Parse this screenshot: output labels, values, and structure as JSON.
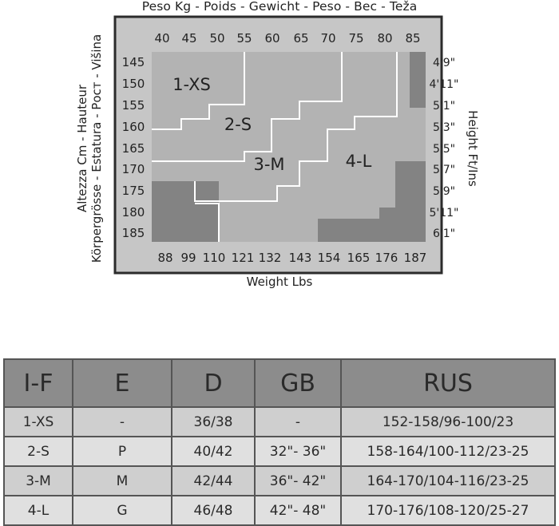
{
  "chart_data": {
    "type": "table",
    "title": "Peso Kg - Poids - Gewicht - Peso - Bec - Teža",
    "xlabel": "Weight Lbs",
    "ylabel_left": [
      "Altezza Cm - Hauteur",
      "Körpergrösse - Estatura - Рост - Višina"
    ],
    "ylabel_right": "Height Ft/Ins",
    "kg_ticks": [
      "40",
      "45",
      "50",
      "55",
      "60",
      "65",
      "70",
      "75",
      "80",
      "85"
    ],
    "lbs_ticks": [
      "88",
      "99",
      "110",
      "121",
      "132",
      "143",
      "154",
      "165",
      "176",
      "187"
    ],
    "cm_ticks": [
      "145",
      "150",
      "155",
      "160",
      "165",
      "170",
      "175",
      "180",
      "185"
    ],
    "ftin_ticks": [
      "4'9\"",
      "4'11\"",
      "5'1\"",
      "5'3\"",
      "5'5\"",
      "5'7\"",
      "5'9\"",
      "5'11\"",
      "6'1\""
    ],
    "zones": [
      {
        "label": "1-XS"
      },
      {
        "label": "2-S"
      },
      {
        "label": "3-M"
      },
      {
        "label": "4-L"
      }
    ],
    "colors": {
      "frame_bg": "#c6c6c6",
      "plot_bg": "#b3b3b3",
      "out_of_range": "#838383",
      "boundary": "#ffffff",
      "border": "#2b2b2b"
    }
  },
  "size_table": {
    "headers": [
      "I-F",
      "E",
      "D",
      "GB",
      "RUS"
    ],
    "rows": [
      [
        "1-XS",
        "-",
        "36/38",
        "-",
        "152-158/96-100/23"
      ],
      [
        "2-S",
        "P",
        "40/42",
        "32\"- 36\"",
        "158-164/100-112/23-25"
      ],
      [
        "3-M",
        "M",
        "42/44",
        "36\"- 42\"",
        "164-170/104-116/23-25"
      ],
      [
        "4-L",
        "G",
        "46/48",
        "42\"- 48\"",
        "170-176/108-120/25-27"
      ]
    ]
  }
}
